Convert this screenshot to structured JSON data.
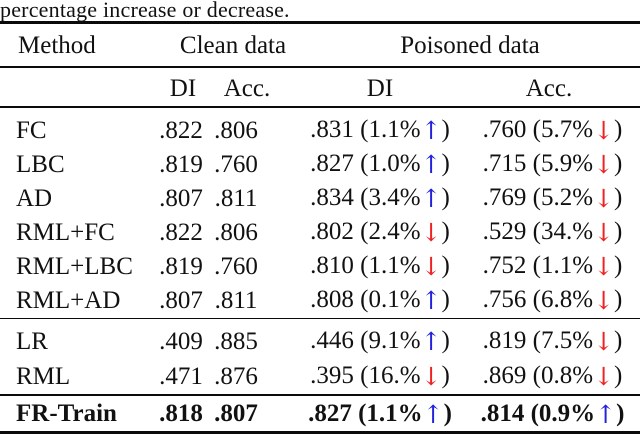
{
  "caption": "percentage increase or decrease.",
  "colors": {
    "up_arrow": "#2222dd",
    "down_arrow": "#ee2222",
    "rule": "#0a0a0a",
    "text": "#111111"
  },
  "glyphs": {
    "arrow_up": "↑",
    "arrow_down": "↓"
  },
  "table": {
    "method_header": "Method",
    "group_headers": [
      "Clean data",
      "Poisoned data"
    ],
    "sub_headers": [
      "DI",
      "Acc.",
      "DI",
      "Acc."
    ],
    "groups": [
      {
        "rows": [
          {
            "method": "FC",
            "clean_di": ".822",
            "clean_acc": ".806",
            "poisoned_di": {
              "value": ".831",
              "pct": "1.1%",
              "dir": "up"
            },
            "poisoned_acc": {
              "value": ".760",
              "pct": "5.7%",
              "dir": "down"
            },
            "bold": false
          },
          {
            "method": "LBC",
            "clean_di": ".819",
            "clean_acc": ".760",
            "poisoned_di": {
              "value": ".827",
              "pct": "1.0%",
              "dir": "up"
            },
            "poisoned_acc": {
              "value": ".715",
              "pct": "5.9%",
              "dir": "down"
            },
            "bold": false
          },
          {
            "method": "AD",
            "clean_di": ".807",
            "clean_acc": ".811",
            "poisoned_di": {
              "value": ".834",
              "pct": "3.4%",
              "dir": "up"
            },
            "poisoned_acc": {
              "value": ".769",
              "pct": "5.2%",
              "dir": "down"
            },
            "bold": false
          },
          {
            "method": "RML+FC",
            "clean_di": ".822",
            "clean_acc": ".806",
            "poisoned_di": {
              "value": ".802",
              "pct": "2.4%",
              "dir": "down"
            },
            "poisoned_acc": {
              "value": ".529",
              "pct": "34.%",
              "dir": "down"
            },
            "bold": false
          },
          {
            "method": "RML+LBC",
            "clean_di": ".819",
            "clean_acc": ".760",
            "poisoned_di": {
              "value": ".810",
              "pct": "1.1%",
              "dir": "down"
            },
            "poisoned_acc": {
              "value": ".752",
              "pct": "1.1%",
              "dir": "down"
            },
            "bold": false
          },
          {
            "method": "RML+AD",
            "clean_di": ".807",
            "clean_acc": ".811",
            "poisoned_di": {
              "value": ".808",
              "pct": "0.1%",
              "dir": "up"
            },
            "poisoned_acc": {
              "value": ".756",
              "pct": "6.8%",
              "dir": "down"
            },
            "bold": false
          }
        ]
      },
      {
        "rows": [
          {
            "method": "LR",
            "clean_di": ".409",
            "clean_acc": ".885",
            "poisoned_di": {
              "value": ".446",
              "pct": "9.1%",
              "dir": "up"
            },
            "poisoned_acc": {
              "value": ".819",
              "pct": "7.5%",
              "dir": "down"
            },
            "bold": false
          },
          {
            "method": "RML",
            "clean_di": ".471",
            "clean_acc": ".876",
            "poisoned_di": {
              "value": ".395",
              "pct": "16.%",
              "dir": "down"
            },
            "poisoned_acc": {
              "value": ".869",
              "pct": "0.8%",
              "dir": "down"
            },
            "bold": false
          }
        ]
      },
      {
        "rows": [
          {
            "method": "FR-Train",
            "clean_di": ".818",
            "clean_acc": ".807",
            "poisoned_di": {
              "value": ".827",
              "pct": "1.1%",
              "dir": "up"
            },
            "poisoned_acc": {
              "value": ".814",
              "pct": "0.9%",
              "dir": "up"
            },
            "bold": true
          }
        ]
      }
    ]
  }
}
